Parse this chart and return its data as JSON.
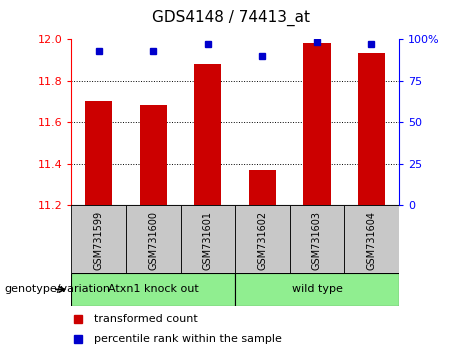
{
  "title": "GDS4148 / 74413_at",
  "samples": [
    "GSM731599",
    "GSM731600",
    "GSM731601",
    "GSM731602",
    "GSM731603",
    "GSM731604"
  ],
  "red_values": [
    11.7,
    11.68,
    11.88,
    11.37,
    11.98,
    11.93
  ],
  "blue_values": [
    93,
    93,
    97,
    90,
    98,
    97
  ],
  "ymin": 11.2,
  "ymax": 12.0,
  "yticks": [
    11.2,
    11.4,
    11.6,
    11.8,
    12.0
  ],
  "y2ticks": [
    0,
    25,
    50,
    75,
    100
  ],
  "y2labels": [
    "0",
    "25",
    "50",
    "75",
    "100%"
  ],
  "bar_color": "#cc0000",
  "dot_color": "#0000cc",
  "group1_label": "Atxn1 knock out",
  "group2_label": "wild type",
  "group_bg_color": "#90ee90",
  "tick_label_bg": "#c8c8c8",
  "legend_red_label": "transformed count",
  "legend_blue_label": "percentile rank within the sample",
  "genotype_label": "genotype/variation"
}
